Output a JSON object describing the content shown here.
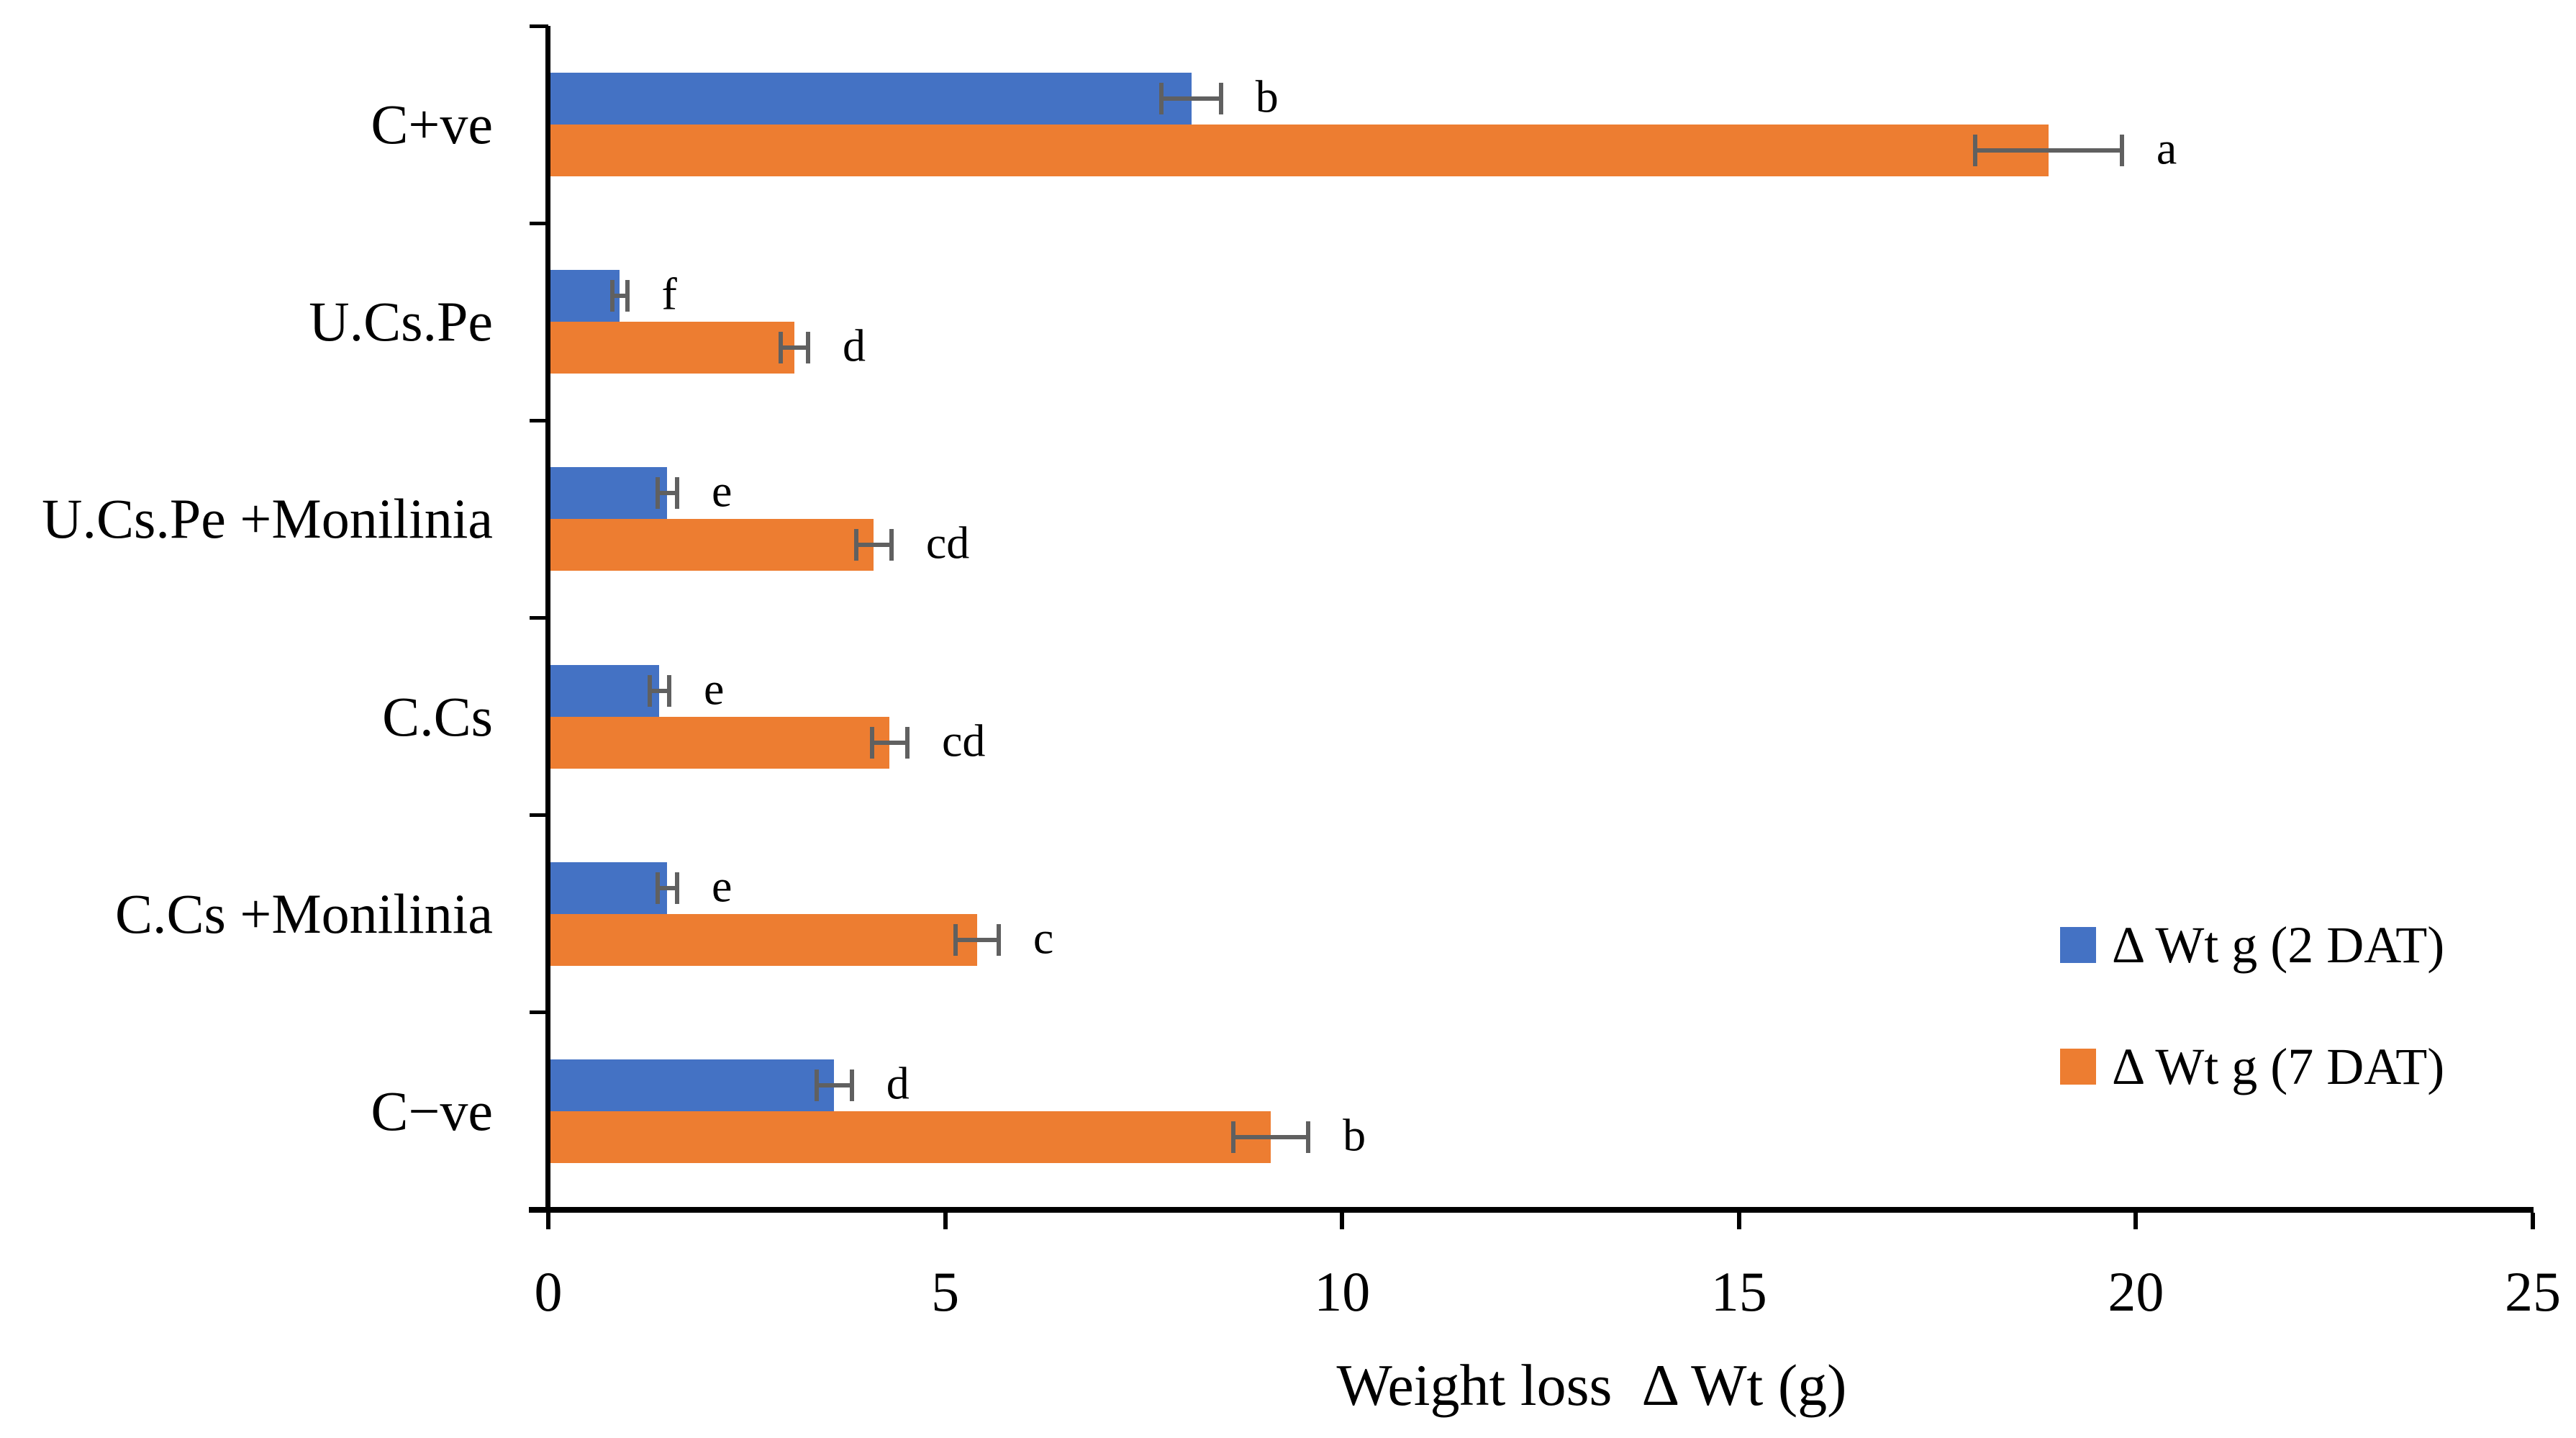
{
  "chart_data": {
    "type": "bar",
    "orientation": "horizontal-grouped",
    "title": "",
    "xlabel": "Weight loss  Δ Wt (g)",
    "ylabel": "",
    "xlim": [
      0,
      25
    ],
    "xticks": [
      0,
      5,
      10,
      15,
      20,
      25
    ],
    "grid": false,
    "legend_position": "right-middle",
    "categories": [
      "C+ve",
      "U.Cs.Pe",
      "U.Cs.Pe +Monilinia",
      "C.Cs",
      "C.Cs +Monilinia",
      "C−ve"
    ],
    "series": [
      {
        "name": "Δ Wt g (2 DAT)",
        "color": "#4472C4",
        "values": [
          8.1,
          0.9,
          1.5,
          1.4,
          1.5,
          3.6
        ],
        "errors": [
          0.4,
          0.12,
          0.15,
          0.15,
          0.15,
          0.25
        ],
        "letters": [
          "b",
          "f",
          "e",
          "e",
          "e",
          "d"
        ]
      },
      {
        "name": "Δ Wt g (7 DAT)",
        "color": "#ED7D31",
        "values": [
          18.9,
          3.1,
          4.1,
          4.3,
          5.4,
          9.1
        ],
        "errors": [
          0.95,
          0.2,
          0.25,
          0.25,
          0.3,
          0.5
        ],
        "letters": [
          "a",
          "d",
          "cd",
          "cd",
          "c",
          "b"
        ]
      }
    ],
    "error_bar_color": "#606060",
    "axis_color": "#000000",
    "background_color": "#FFFFFF"
  }
}
